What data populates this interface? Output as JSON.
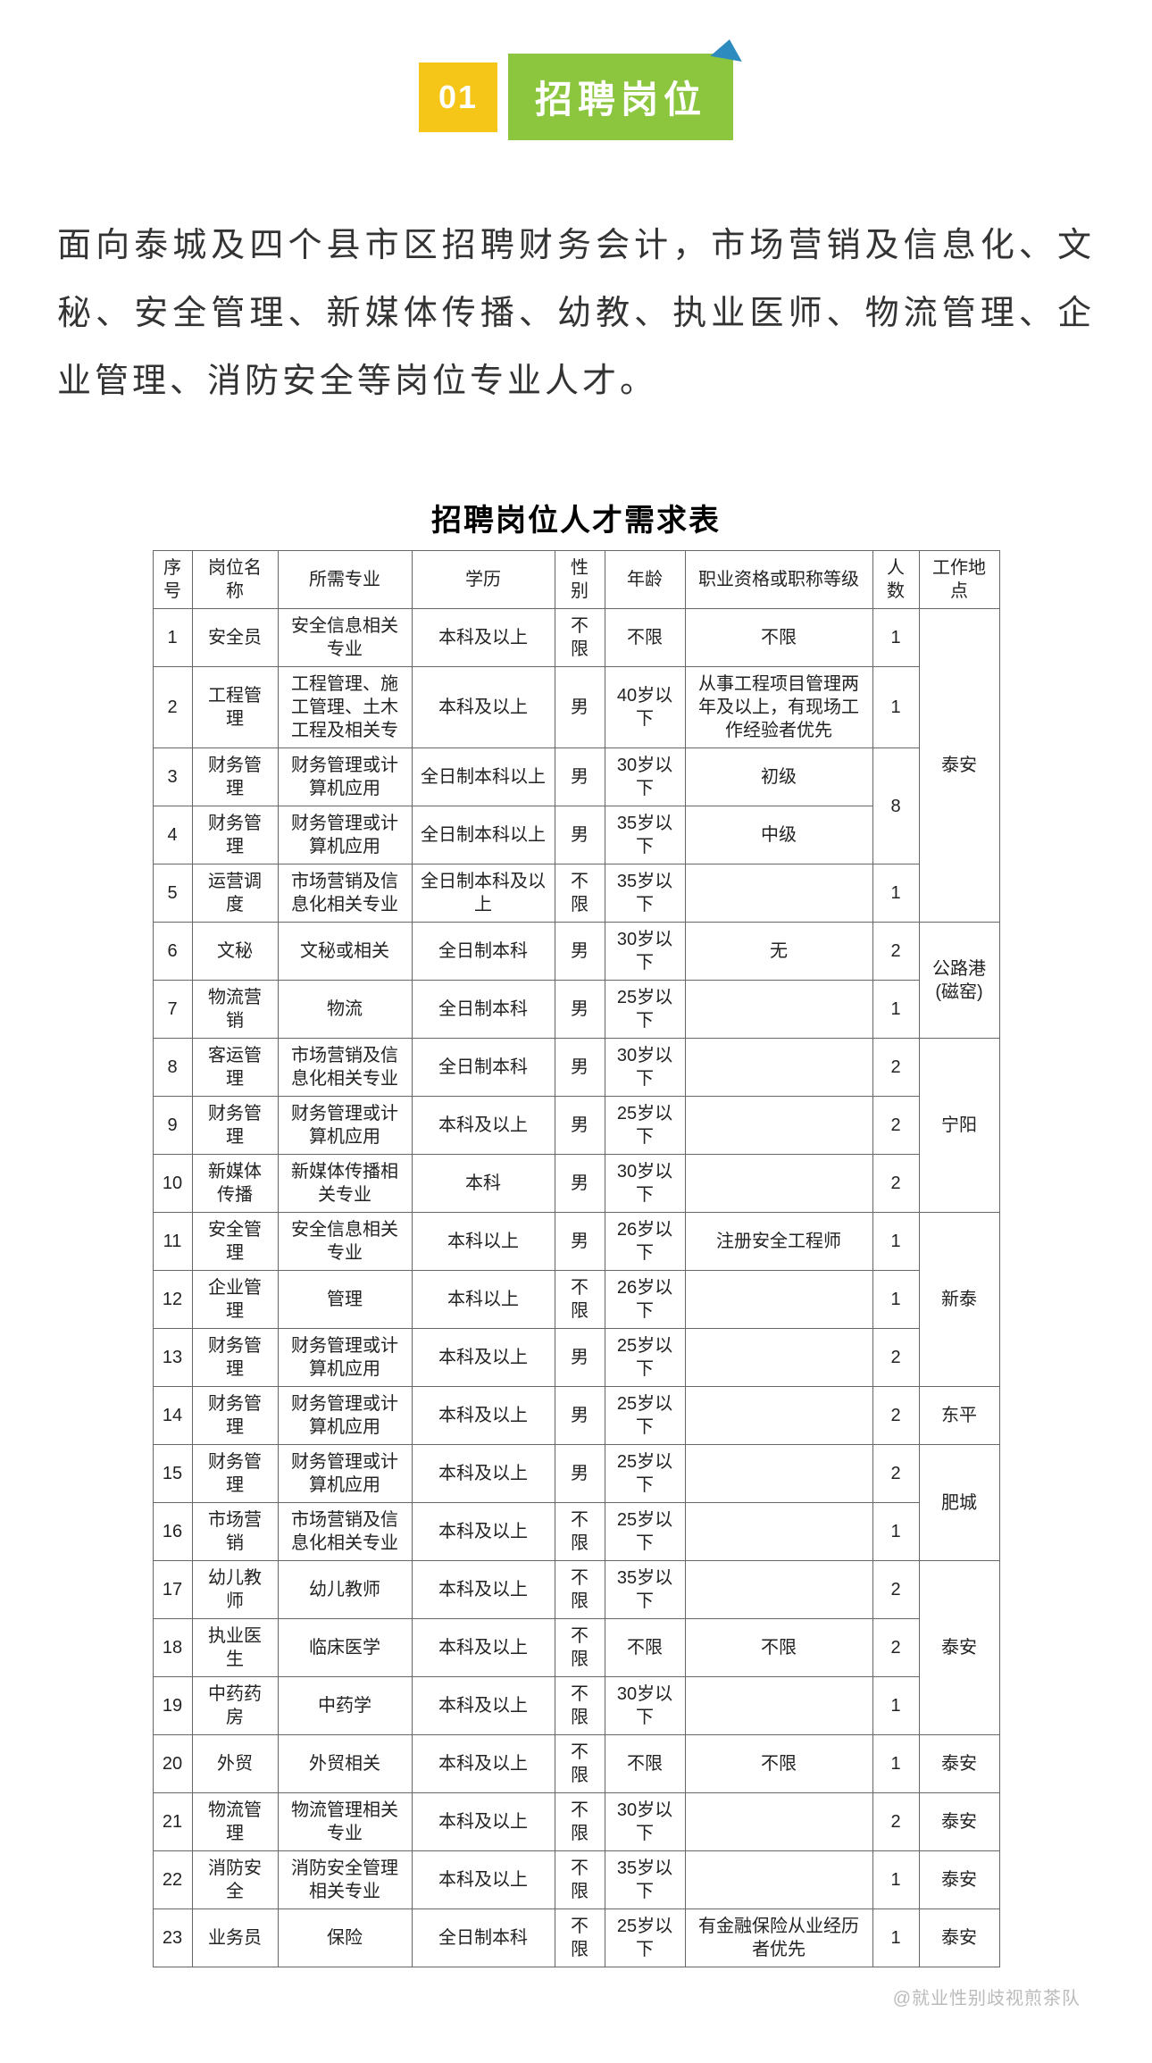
{
  "header": {
    "number": "01",
    "title": "招聘岗位"
  },
  "intro": "面向泰城及四个县市区招聘财务会计，市场营销及信息化、文秘、安全管理、新媒体传播、幼教、执业医师、物流管理、企业管理、消防安全等岗位专业人才。",
  "table_title": "招聘岗位人才需求表",
  "columns": [
    "序号",
    "岗位名称",
    "所需专业",
    "学历",
    "性别",
    "年龄",
    "职业资格或职称等级",
    "人数",
    "工作地点"
  ],
  "rows": [
    {
      "seq": "1",
      "pos": "安全员",
      "major": "安全信息相关专业",
      "edu": "本科及以上",
      "gender": "不限",
      "age": "不限",
      "qual": "不限",
      "count": "1"
    },
    {
      "seq": "2",
      "pos": "工程管理",
      "major": "工程管理、施工管理、土木工程及相关专",
      "edu": "本科及以上",
      "gender": "男",
      "age": "40岁以下",
      "qual": "从事工程项目管理两年及以上，有现场工作经验者优先",
      "count": "1"
    },
    {
      "seq": "3",
      "pos": "财务管理",
      "major": "财务管理或计算机应用",
      "edu": "全日制本科以上",
      "gender": "男",
      "age": "30岁以下",
      "qual": "初级"
    },
    {
      "seq": "4",
      "pos": "财务管理",
      "major": "财务管理或计算机应用",
      "edu": "全日制本科以上",
      "gender": "男",
      "age": "35岁以下",
      "qual": "中级"
    },
    {
      "seq": "5",
      "pos": "运营调度",
      "major": "市场营销及信息化相关专业",
      "edu": "全日制本科及以上",
      "gender": "不限",
      "age": "35岁以下",
      "qual": "",
      "count": "1"
    },
    {
      "seq": "6",
      "pos": "文秘",
      "major": "文秘或相关",
      "edu": "全日制本科",
      "gender": "男",
      "age": "30岁以下",
      "qual": "无",
      "count": "2"
    },
    {
      "seq": "7",
      "pos": "物流营销",
      "major": "物流",
      "edu": "全日制本科",
      "gender": "男",
      "age": "25岁以下",
      "qual": "",
      "count": "1"
    },
    {
      "seq": "8",
      "pos": "客运管理",
      "major": "市场营销及信息化相关专业",
      "edu": "全日制本科",
      "gender": "男",
      "age": "30岁以下",
      "qual": "",
      "count": "2"
    },
    {
      "seq": "9",
      "pos": "财务管理",
      "major": "财务管理或计算机应用",
      "edu": "本科及以上",
      "gender": "男",
      "age": "25岁以下",
      "qual": "",
      "count": "2"
    },
    {
      "seq": "10",
      "pos": "新媒体传播",
      "major": "新媒体传播相关专业",
      "edu": "本科",
      "gender": "男",
      "age": "30岁以下",
      "qual": "",
      "count": "2"
    },
    {
      "seq": "11",
      "pos": "安全管理",
      "major": "安全信息相关专业",
      "edu": "本科以上",
      "gender": "男",
      "age": "26岁以下",
      "qual": "注册安全工程师",
      "count": "1"
    },
    {
      "seq": "12",
      "pos": "企业管理",
      "major": "管理",
      "edu": "本科以上",
      "gender": "不限",
      "age": "26岁以下",
      "qual": "",
      "count": "1"
    },
    {
      "seq": "13",
      "pos": "财务管理",
      "major": "财务管理或计算机应用",
      "edu": "本科及以上",
      "gender": "男",
      "age": "25岁以下",
      "qual": "",
      "count": "2"
    },
    {
      "seq": "14",
      "pos": "财务管理",
      "major": "财务管理或计算机应用",
      "edu": "本科及以上",
      "gender": "男",
      "age": "25岁以下",
      "qual": "",
      "count": "2"
    },
    {
      "seq": "15",
      "pos": "财务管理",
      "major": "财务管理或计算机应用",
      "edu": "本科及以上",
      "gender": "男",
      "age": "25岁以下",
      "qual": "",
      "count": "2"
    },
    {
      "seq": "16",
      "pos": "市场营销",
      "major": "市场营销及信息化相关专业",
      "edu": "本科及以上",
      "gender": "不限",
      "age": "25岁以下",
      "qual": "",
      "count": "1"
    },
    {
      "seq": "17",
      "pos": "幼儿教师",
      "major": "幼儿教师",
      "edu": "本科及以上",
      "gender": "不限",
      "age": "35岁以下",
      "qual": "",
      "count": "2"
    },
    {
      "seq": "18",
      "pos": "执业医生",
      "major": "临床医学",
      "edu": "本科及以上",
      "gender": "不限",
      "age": "不限",
      "qual": "不限",
      "count": "2"
    },
    {
      "seq": "19",
      "pos": "中药药房",
      "major": "中药学",
      "edu": "本科及以上",
      "gender": "不限",
      "age": "30岁以下",
      "qual": "",
      "count": "1"
    },
    {
      "seq": "20",
      "pos": "外贸",
      "major": "外贸相关",
      "edu": "本科及以上",
      "gender": "不限",
      "age": "不限",
      "qual": "不限",
      "count": "1"
    },
    {
      "seq": "21",
      "pos": "物流管理",
      "major": "物流管理相关专业",
      "edu": "本科及以上",
      "gender": "不限",
      "age": "30岁以下",
      "qual": "",
      "count": "2"
    },
    {
      "seq": "22",
      "pos": "消防安全",
      "major": "消防安全管理相关专业",
      "edu": "本科及以上",
      "gender": "不限",
      "age": "35岁以下",
      "qual": "",
      "count": "1"
    },
    {
      "seq": "23",
      "pos": "业务员",
      "major": "保险",
      "edu": "全日制本科",
      "gender": "不限",
      "age": "25岁以下",
      "qual": "有金融保险从业经历者优先",
      "count": "1"
    }
  ],
  "count_3_4": "8",
  "locations": {
    "taian1": "泰安",
    "gonglu": "公路港(磁窑)",
    "ningyang": "宁阳",
    "xintai": "新泰",
    "dongping": "东平",
    "feicheng": "肥城",
    "taian2": "泰安",
    "taian3": "泰安",
    "taian4": "泰安",
    "taian5": "泰安",
    "taian6": "泰安"
  },
  "watermark": "@就业性别歧视煎茶队"
}
